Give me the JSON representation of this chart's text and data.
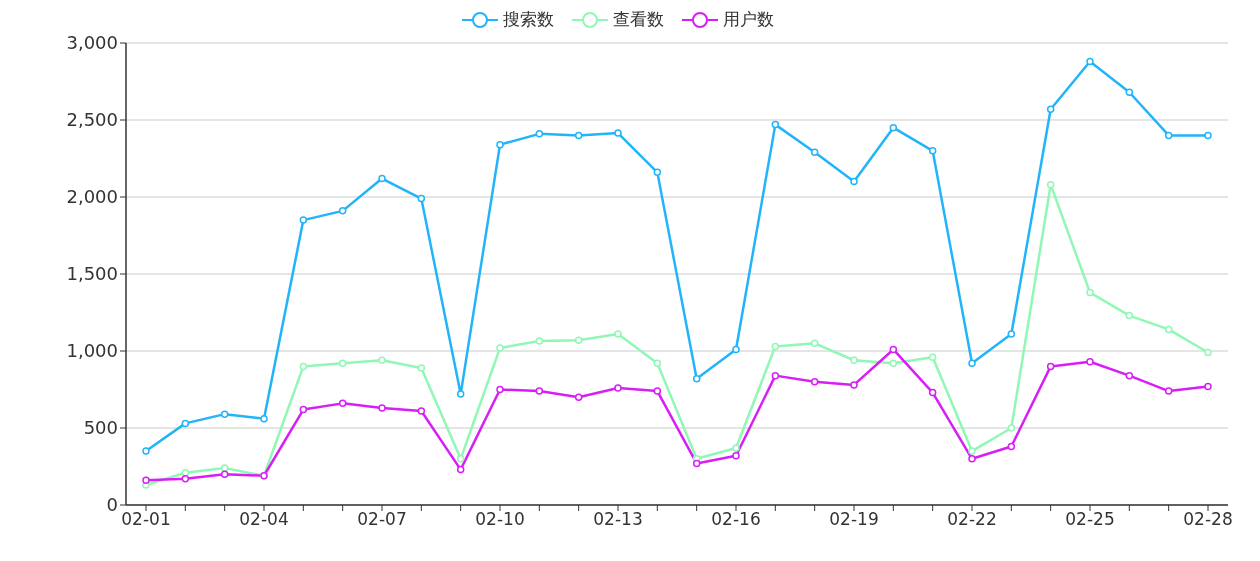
{
  "chart_data": {
    "type": "line",
    "categories": [
      "02-01",
      null,
      null,
      "02-04",
      null,
      null,
      "02-07",
      null,
      null,
      "02-10",
      null,
      null,
      "02-13",
      null,
      null,
      "02-16",
      null,
      null,
      "02-19",
      null,
      null,
      "02-22",
      null,
      null,
      "02-25",
      null,
      null,
      "02-28"
    ],
    "series": [
      {
        "name": "搜索数",
        "color": "#22b4fa",
        "values": [
          350,
          530,
          590,
          560,
          1850,
          1910,
          2120,
          1990,
          720,
          2340,
          2410,
          2400,
          2415,
          2160,
          820,
          1010,
          2470,
          2290,
          2100,
          2450,
          2300,
          920,
          1110,
          2570,
          2880,
          2680,
          2400,
          2400
        ]
      },
      {
        "name": "查看数",
        "color": "#90f7b5",
        "values": [
          130,
          210,
          240,
          190,
          900,
          920,
          940,
          890,
          300,
          1020,
          1065,
          1070,
          1110,
          920,
          300,
          370,
          1030,
          1050,
          940,
          920,
          960,
          350,
          500,
          2080,
          1380,
          1230,
          1140,
          990
        ]
      },
      {
        "name": "用户数",
        "color": "#d81ef6",
        "values": [
          160,
          170,
          200,
          190,
          620,
          660,
          630,
          610,
          230,
          750,
          740,
          700,
          760,
          740,
          270,
          320,
          840,
          800,
          780,
          1010,
          730,
          300,
          380,
          900,
          930,
          840,
          740,
          770
        ]
      }
    ],
    "ylim": [
      0,
      3000
    ],
    "yticks": [
      0,
      500,
      {
        "value": 1000,
        "label": "1,000"
      },
      {
        "value": 1500,
        "label": "1,500"
      },
      {
        "value": 2000,
        "label": "2,000"
      },
      {
        "value": 2500,
        "label": "2,500"
      },
      {
        "value": 3000,
        "label": "3,000"
      }
    ],
    "grid": "y",
    "legend": "top",
    "marker": "circle",
    "line_style": "solid"
  }
}
